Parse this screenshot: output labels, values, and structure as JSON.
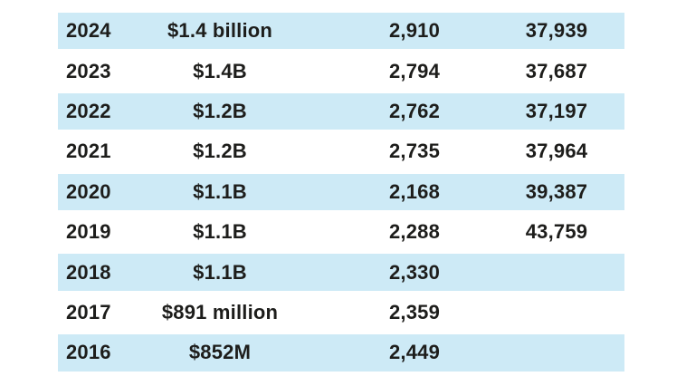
{
  "chart_data": {
    "type": "table",
    "header_visible": false,
    "zebra_striping": true,
    "rows": [
      [
        "2024",
        "$1.4 billion",
        "2,910",
        "37,939"
      ],
      [
        "2023",
        "$1.4B",
        "2,794",
        "37,687"
      ],
      [
        "2022",
        "$1.2B",
        "2,762",
        "37,197"
      ],
      [
        "2021",
        "$1.2B",
        "2,735",
        "37,964"
      ],
      [
        "2020",
        "$1.1B",
        "2,168",
        "39,387"
      ],
      [
        "2019",
        "$1.1B",
        "2,288",
        "43,759"
      ],
      [
        "2018",
        "$1.1B",
        "2,330",
        ""
      ],
      [
        "2017",
        "$891 million",
        "2,359",
        ""
      ],
      [
        "2016",
        "$852M",
        "2,449",
        ""
      ]
    ],
    "highlighted_rows": [
      0,
      2,
      4,
      6,
      8
    ]
  },
  "colors": {
    "row_highlight": "#cdeaf6",
    "text": "#1d1d1b",
    "background": "#ffffff"
  }
}
